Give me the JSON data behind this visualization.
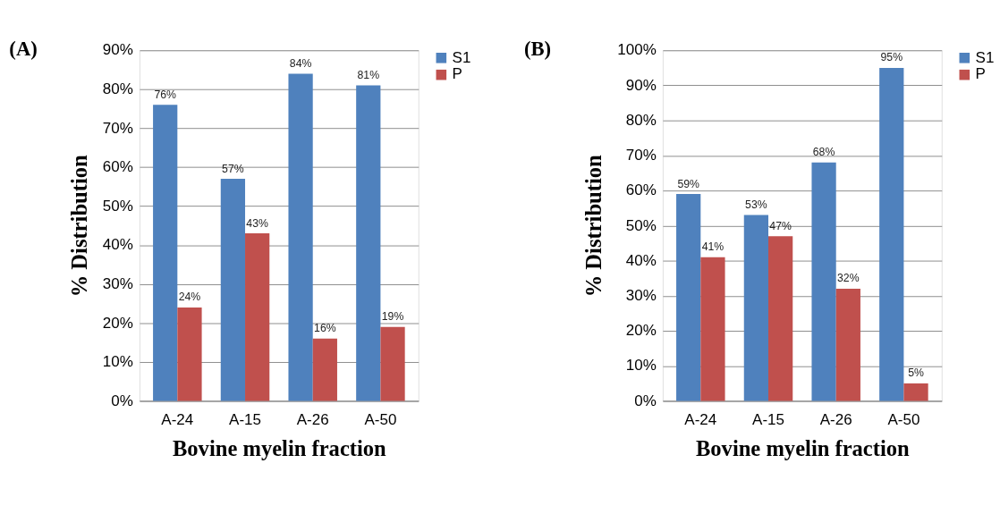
{
  "chart_data": [
    {
      "type": "bar",
      "title": "(A)",
      "xlabel": "Bovine myelin fraction",
      "ylabel": "% Distribution",
      "categories": [
        "A-24",
        "A-15",
        "A-26",
        "A-50"
      ],
      "series": [
        {
          "name": "S1",
          "color": "#4f81bd",
          "values": [
            76,
            57,
            84,
            81
          ],
          "value_labels": [
            "76%",
            "57%",
            "84%",
            "81%"
          ]
        },
        {
          "name": "P",
          "color": "#c0504d",
          "values": [
            24,
            43,
            16,
            19
          ],
          "value_labels": [
            "24%",
            "43%",
            "16%",
            "19%"
          ]
        }
      ],
      "ylim": [
        0,
        90
      ],
      "yticks": [
        {
          "value": 0,
          "label": "0%"
        },
        {
          "value": 10,
          "label": "10%"
        },
        {
          "value": 20,
          "label": "20%"
        },
        {
          "value": 30,
          "label": "30%"
        },
        {
          "value": 40,
          "label": "40%"
        },
        {
          "value": 50,
          "label": "50%"
        },
        {
          "value": 60,
          "label": "60%"
        },
        {
          "value": 70,
          "label": "70%"
        },
        {
          "value": 80,
          "label": "80%"
        },
        {
          "value": 90,
          "label": "90%"
        }
      ],
      "grid": "y",
      "legend": "right"
    },
    {
      "type": "bar",
      "title": "(B)",
      "xlabel": "Bovine myelin fraction",
      "ylabel": "% Distribution",
      "categories": [
        "A-24",
        "A-15",
        "A-26",
        "A-50"
      ],
      "series": [
        {
          "name": "S1",
          "color": "#4f81bd",
          "values": [
            59,
            53,
            68,
            95
          ],
          "value_labels": [
            "59%",
            "53%",
            "68%",
            "95%"
          ]
        },
        {
          "name": "P",
          "color": "#c0504d",
          "values": [
            41,
            47,
            32,
            5
          ],
          "value_labels": [
            "41%",
            "47%",
            "32%",
            "5%"
          ]
        }
      ],
      "ylim": [
        0,
        100
      ],
      "yticks": [
        {
          "value": 0,
          "label": "0%"
        },
        {
          "value": 10,
          "label": "10%"
        },
        {
          "value": 20,
          "label": "20%"
        },
        {
          "value": 30,
          "label": "30%"
        },
        {
          "value": 40,
          "label": "40%"
        },
        {
          "value": 50,
          "label": "50%"
        },
        {
          "value": 60,
          "label": "60%"
        },
        {
          "value": 70,
          "label": "70%"
        },
        {
          "value": 80,
          "label": "80%"
        },
        {
          "value": 90,
          "label": "90%"
        },
        {
          "value": 100,
          "label": "100%"
        }
      ],
      "grid": "y",
      "legend": "right"
    }
  ]
}
